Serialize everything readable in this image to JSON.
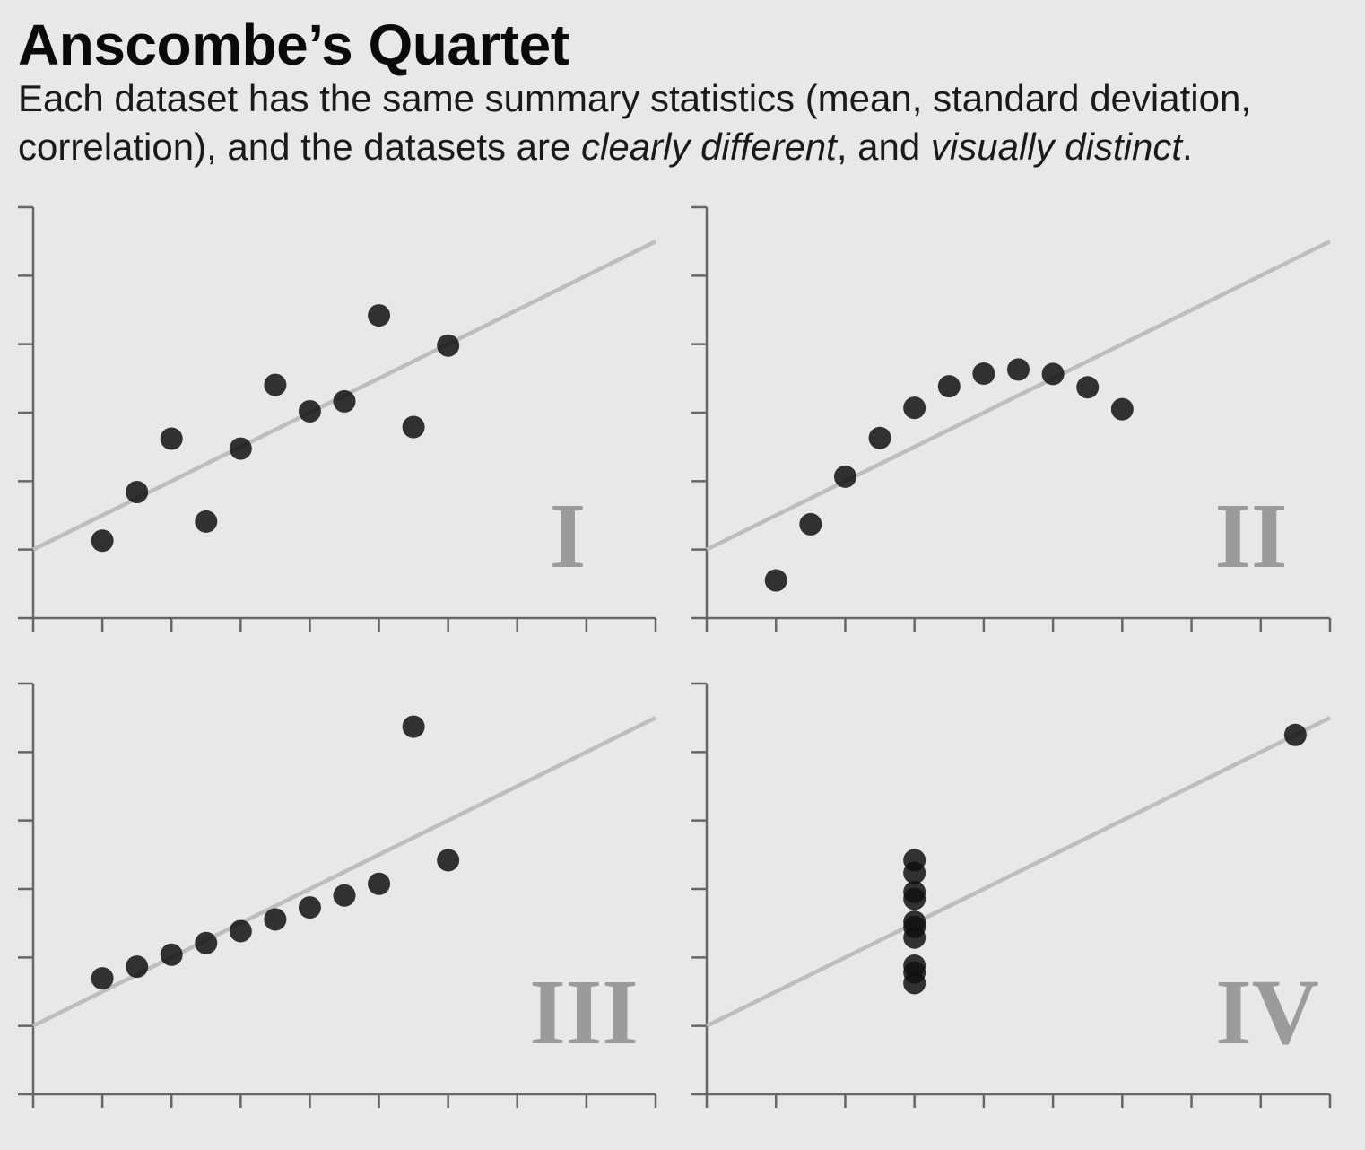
{
  "title": "Anscombe’s Quartet",
  "subtitle": {
    "part1": "Each dataset has the same summary statistics (mean, standard deviation, correlation), and the datasets are ",
    "em1": "clearly different",
    "part2": ", and ",
    "em2": "visually distinct",
    "part3": "."
  },
  "colors": {
    "background": "#e8e8e8",
    "point": "#111111",
    "fit_line": "#bdbdbd",
    "axis": "#666666",
    "panel_label": "#9b9b9b"
  },
  "chart_data": [
    {
      "type": "scatter",
      "panel_label": "I",
      "x": [
        4,
        5,
        6,
        7,
        8,
        9,
        10,
        11,
        12,
        13,
        14
      ],
      "y": [
        4.26,
        5.68,
        7.24,
        4.82,
        6.95,
        8.81,
        8.04,
        8.33,
        10.84,
        7.58,
        9.96
      ],
      "fit_line": {
        "slope": 0.5,
        "intercept": 3
      },
      "xlim": [
        2,
        20
      ],
      "ylim": [
        2,
        14
      ],
      "xticks": [
        2,
        4,
        6,
        8,
        10,
        12,
        14,
        16,
        18,
        20
      ],
      "yticks": [
        4,
        6,
        8,
        10,
        12,
        14
      ],
      "grid": false
    },
    {
      "type": "scatter",
      "panel_label": "II",
      "x": [
        4,
        5,
        6,
        7,
        8,
        9,
        10,
        11,
        12,
        13,
        14
      ],
      "y": [
        3.1,
        4.74,
        6.13,
        7.26,
        8.14,
        8.77,
        9.14,
        9.26,
        9.13,
        8.74,
        8.1
      ],
      "fit_line": {
        "slope": 0.5,
        "intercept": 3
      },
      "xlim": [
        2,
        20
      ],
      "ylim": [
        2,
        14
      ],
      "xticks": [
        2,
        4,
        6,
        8,
        10,
        12,
        14,
        16,
        18,
        20
      ],
      "yticks": [
        4,
        6,
        8,
        10,
        12,
        14
      ],
      "grid": false
    },
    {
      "type": "scatter",
      "panel_label": "III",
      "x": [
        4,
        5,
        6,
        7,
        8,
        9,
        10,
        11,
        12,
        13,
        14
      ],
      "y": [
        5.39,
        5.73,
        6.08,
        6.42,
        6.77,
        7.11,
        7.46,
        7.81,
        8.15,
        12.74,
        8.84
      ],
      "fit_line": {
        "slope": 0.5,
        "intercept": 3
      },
      "xlim": [
        2,
        20
      ],
      "ylim": [
        2,
        14
      ],
      "xticks": [
        2,
        4,
        6,
        8,
        10,
        12,
        14,
        16,
        18,
        20
      ],
      "yticks": [
        4,
        6,
        8,
        10,
        12,
        14
      ],
      "grid": false
    },
    {
      "type": "scatter",
      "panel_label": "IV",
      "x": [
        8,
        8,
        8,
        8,
        8,
        8,
        8,
        8,
        8,
        8,
        19
      ],
      "y": [
        6.58,
        5.76,
        7.71,
        8.84,
        8.47,
        7.04,
        5.25,
        5.56,
        7.91,
        6.89,
        12.5
      ],
      "fit_line": {
        "slope": 0.5,
        "intercept": 3
      },
      "xlim": [
        2,
        20
      ],
      "ylim": [
        2,
        14
      ],
      "xticks": [
        2,
        4,
        6,
        8,
        10,
        12,
        14,
        16,
        18,
        20
      ],
      "yticks": [
        4,
        6,
        8,
        10,
        12,
        14
      ],
      "grid": false
    }
  ]
}
